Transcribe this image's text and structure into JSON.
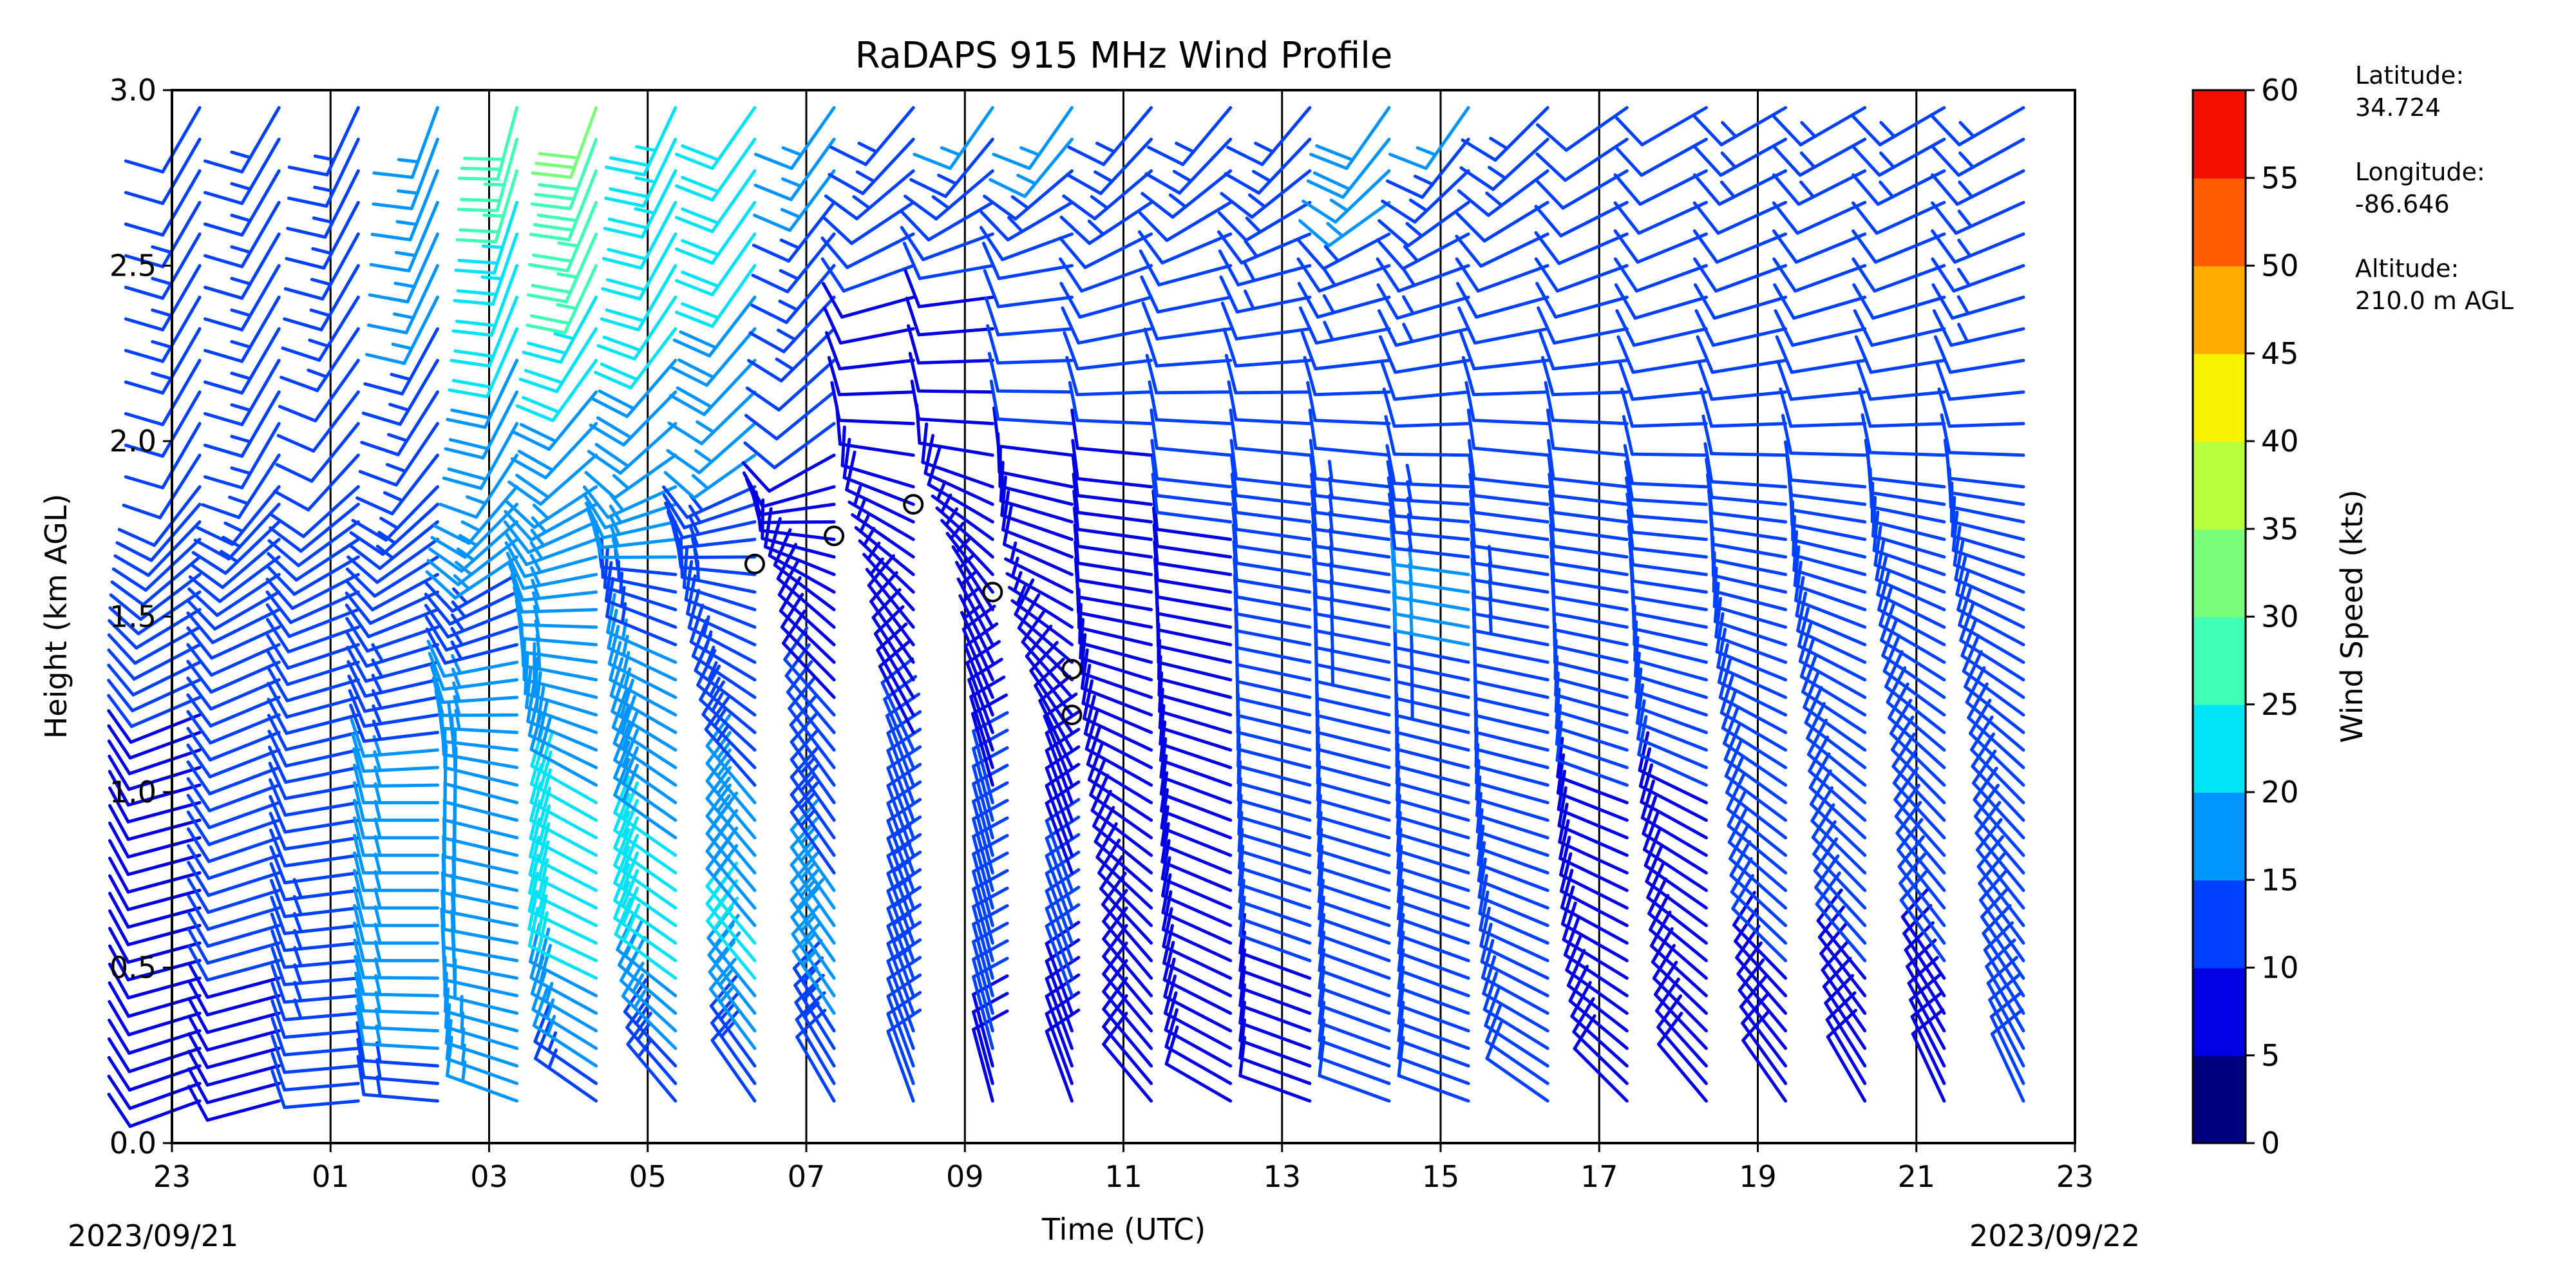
{
  "chart_data": {
    "type": "wind-barb",
    "title": "RaDAPS 915 MHz Wind Profile",
    "xlabel": "Time (UTC)",
    "ylabel": "Height (km AGL)",
    "x_ticks": [
      "23",
      "01",
      "03",
      "05",
      "07",
      "09",
      "11",
      "13",
      "15",
      "17",
      "19",
      "21",
      "23"
    ],
    "x_range_hours": [
      0,
      24
    ],
    "start_date": "2023/09/21",
    "end_date": "2023/09/22",
    "y_ticks": [
      "0.0",
      "0.5",
      "1.0",
      "1.5",
      "2.0",
      "2.5",
      "3.0"
    ],
    "ylim": [
      0,
      3.0
    ],
    "colorbar": {
      "label": "Wind Speed (kts)",
      "ticks": [
        "0",
        "5",
        "10",
        "15",
        "20",
        "25",
        "30",
        "35",
        "40",
        "45",
        "50",
        "55",
        "60"
      ],
      "range": [
        0,
        60
      ],
      "colors": [
        "#00007f",
        "#0000e3",
        "#0040ff",
        "#0094ff",
        "#00e3f7",
        "#3fffb6",
        "#7aff7a",
        "#b9ff3d",
        "#f7f400",
        "#ffab00",
        "#ff5c00",
        "#f20f00",
        "#7f0000"
      ]
    },
    "station": {
      "lat_label": "Latitude:",
      "lat": "34.724",
      "lon_label": "Longitude:",
      "lon": "-86.646",
      "alt_label": "Altitude:",
      "alt": "210.0 m AGL"
    },
    "profiles": [
      {
        "t": 0.0,
        "points": [
          [
            0.15,
            8,
            250
          ],
          [
            0.5,
            9,
            255
          ],
          [
            1.0,
            9,
            255
          ],
          [
            1.5,
            11,
            240
          ],
          [
            2.0,
            12,
            210
          ],
          [
            2.5,
            13,
            210
          ],
          [
            2.9,
            12,
            210
          ]
        ]
      },
      {
        "t": 1.0,
        "points": [
          [
            0.15,
            9,
            255
          ],
          [
            0.5,
            10,
            255
          ],
          [
            1.0,
            10,
            250
          ],
          [
            1.5,
            12,
            245
          ],
          [
            2.0,
            13,
            210
          ],
          [
            2.5,
            14,
            210
          ],
          [
            2.9,
            13,
            210
          ]
        ]
      },
      {
        "t": 2.0,
        "points": [
          [
            0.15,
            12,
            265
          ],
          [
            0.5,
            13,
            265
          ],
          [
            1.0,
            12,
            260
          ],
          [
            1.5,
            11,
            250
          ],
          [
            2.0,
            12,
            220
          ],
          [
            2.5,
            13,
            210
          ],
          [
            2.9,
            14,
            205
          ]
        ]
      },
      {
        "t": 3.0,
        "points": [
          [
            0.15,
            14,
            275
          ],
          [
            0.5,
            17,
            270
          ],
          [
            1.0,
            16,
            270
          ],
          [
            1.5,
            12,
            250
          ],
          [
            2.0,
            13,
            215
          ],
          [
            2.5,
            16,
            205
          ],
          [
            2.9,
            17,
            200
          ]
        ]
      },
      {
        "t": 4.0,
        "points": [
          [
            0.15,
            15,
            290
          ],
          [
            0.5,
            20,
            280
          ],
          [
            1.0,
            19,
            285
          ],
          [
            1.5,
            14,
            250
          ],
          [
            2.0,
            17,
            210
          ],
          [
            2.5,
            22,
            200
          ],
          [
            2.9,
            28,
            195
          ]
        ]
      },
      {
        "t": 5.0,
        "points": [
          [
            0.15,
            14,
            305
          ],
          [
            0.5,
            21,
            295
          ],
          [
            1.0,
            20,
            300
          ],
          [
            1.5,
            16,
            270
          ],
          [
            2.0,
            18,
            225
          ],
          [
            2.5,
            25,
            205
          ],
          [
            2.9,
            30,
            200
          ]
        ]
      },
      {
        "t": 6.0,
        "points": [
          [
            0.15,
            13,
            320
          ],
          [
            0.5,
            22,
            305
          ],
          [
            1.0,
            19,
            305
          ],
          [
            1.5,
            14,
            290
          ],
          [
            2.0,
            17,
            230
          ],
          [
            2.5,
            22,
            210
          ],
          [
            2.9,
            23,
            205
          ]
        ]
      },
      {
        "t": 7.0,
        "points": [
          [
            0.15,
            12,
            325
          ],
          [
            0.5,
            21,
            320
          ],
          [
            1.0,
            15,
            320
          ],
          [
            1.5,
            12,
            290
          ],
          [
            2.0,
            16,
            230
          ],
          [
            2.5,
            20,
            215
          ],
          [
            2.9,
            20,
            215
          ]
        ]
      },
      {
        "t": 8.0,
        "points": [
          [
            0.15,
            12,
            330
          ],
          [
            0.5,
            18,
            325
          ],
          [
            1.0,
            12,
            325
          ],
          [
            1.5,
            8,
            310
          ],
          [
            2.0,
            10,
            235
          ],
          [
            2.5,
            14,
            220
          ],
          [
            2.9,
            16,
            215
          ]
        ]
      },
      {
        "t": 9.0,
        "points": [
          [
            0.15,
            10,
            340
          ],
          [
            0.5,
            14,
            340
          ],
          [
            1.0,
            11,
            340
          ],
          [
            1.5,
            7,
            320
          ],
          [
            2.0,
            8,
            275
          ],
          [
            2.5,
            10,
            250
          ],
          [
            2.9,
            14,
            220
          ]
        ]
      },
      {
        "t": 10.0,
        "points": [
          [
            0.15,
            9,
            345
          ],
          [
            0.5,
            12,
            345
          ],
          [
            1.0,
            10,
            345
          ],
          [
            1.5,
            6,
            330
          ],
          [
            2.0,
            9,
            275
          ],
          [
            2.5,
            10,
            260
          ],
          [
            2.9,
            15,
            215
          ]
        ]
      },
      {
        "t": 11.0,
        "points": [
          [
            0.15,
            8,
            340
          ],
          [
            0.5,
            11,
            340
          ],
          [
            1.0,
            9,
            340
          ],
          [
            1.5,
            7,
            300
          ],
          [
            2.0,
            10,
            275
          ],
          [
            2.5,
            11,
            260
          ],
          [
            2.9,
            16,
            215
          ]
        ]
      },
      {
        "t": 12.0,
        "points": [
          [
            0.15,
            8,
            320
          ],
          [
            0.5,
            10,
            320
          ],
          [
            1.0,
            9,
            300
          ],
          [
            1.5,
            8,
            280
          ],
          [
            2.0,
            10,
            275
          ],
          [
            2.5,
            12,
            250
          ],
          [
            2.9,
            14,
            220
          ]
        ]
      },
      {
        "t": 13.0,
        "points": [
          [
            0.15,
            9,
            300
          ],
          [
            0.5,
            10,
            295
          ],
          [
            1.0,
            9,
            290
          ],
          [
            1.5,
            9,
            280
          ],
          [
            2.0,
            11,
            275
          ],
          [
            2.5,
            12,
            255
          ],
          [
            2.9,
            13,
            220
          ]
        ]
      },
      {
        "t": 14.0,
        "points": [
          [
            0.15,
            9,
            290
          ],
          [
            0.5,
            10,
            290
          ],
          [
            1.0,
            10,
            285
          ],
          [
            1.5,
            11,
            280
          ],
          [
            2.0,
            11,
            275
          ],
          [
            2.5,
            13,
            255
          ],
          [
            2.9,
            14,
            220
          ]
        ]
      },
      {
        "t": 15.0,
        "points": [
          [
            0.15,
            10,
            290
          ],
          [
            0.5,
            11,
            290
          ],
          [
            1.0,
            11,
            285
          ],
          [
            1.5,
            14,
            280
          ],
          [
            2.0,
            12,
            275
          ],
          [
            2.5,
            13,
            250
          ],
          [
            2.9,
            18,
            215
          ]
        ]
      },
      {
        "t": 16.0,
        "points": [
          [
            0.15,
            10,
            290
          ],
          [
            0.5,
            11,
            290
          ],
          [
            1.0,
            11,
            285
          ],
          [
            1.5,
            16,
            280
          ],
          [
            2.0,
            12,
            270
          ],
          [
            2.5,
            13,
            250
          ],
          [
            2.9,
            15,
            215
          ]
        ]
      },
      {
        "t": 17.0,
        "points": [
          [
            0.15,
            11,
            305
          ],
          [
            0.5,
            11,
            295
          ],
          [
            1.0,
            11,
            285
          ],
          [
            1.5,
            13,
            280
          ],
          [
            2.0,
            11,
            275
          ],
          [
            2.5,
            12,
            250
          ],
          [
            2.9,
            13,
            225
          ]
        ]
      },
      {
        "t": 18.0,
        "points": [
          [
            0.15,
            9,
            315
          ],
          [
            0.5,
            9,
            300
          ],
          [
            1.0,
            10,
            290
          ],
          [
            1.5,
            12,
            280
          ],
          [
            2.0,
            11,
            275
          ],
          [
            2.5,
            11,
            250
          ],
          [
            2.9,
            12,
            235
          ]
        ]
      },
      {
        "t": 19.0,
        "points": [
          [
            0.15,
            8,
            320
          ],
          [
            0.5,
            9,
            310
          ],
          [
            1.0,
            10,
            295
          ],
          [
            1.5,
            12,
            280
          ],
          [
            2.0,
            11,
            270
          ],
          [
            2.5,
            11,
            250
          ],
          [
            2.9,
            12,
            240
          ]
        ]
      },
      {
        "t": 20.0,
        "points": [
          [
            0.15,
            9,
            325
          ],
          [
            0.5,
            10,
            315
          ],
          [
            1.0,
            11,
            305
          ],
          [
            1.5,
            12,
            285
          ],
          [
            2.0,
            11,
            270
          ],
          [
            2.5,
            12,
            250
          ],
          [
            2.9,
            13,
            240
          ]
        ]
      },
      {
        "t": 21.0,
        "points": [
          [
            0.15,
            9,
            330
          ],
          [
            0.5,
            10,
            320
          ],
          [
            1.0,
            11,
            310
          ],
          [
            1.5,
            12,
            290
          ],
          [
            2.0,
            11,
            270
          ],
          [
            2.5,
            12,
            250
          ],
          [
            2.9,
            13,
            240
          ]
        ]
      },
      {
        "t": 22.0,
        "points": [
          [
            0.15,
            9,
            335
          ],
          [
            0.5,
            10,
            325
          ],
          [
            1.0,
            11,
            315
          ],
          [
            1.5,
            12,
            295
          ],
          [
            2.0,
            12,
            270
          ],
          [
            2.5,
            12,
            250
          ],
          [
            2.9,
            13,
            240
          ]
        ]
      },
      {
        "t": 23.0,
        "points": [
          [
            0.15,
            10,
            335
          ],
          [
            0.5,
            11,
            325
          ],
          [
            1.0,
            11,
            315
          ],
          [
            1.5,
            12,
            295
          ],
          [
            2.0,
            12,
            270
          ],
          [
            2.5,
            13,
            250
          ],
          [
            2.9,
            13,
            240
          ]
        ]
      }
    ],
    "calm_points": [
      [
        7.35,
        1.65
      ],
      [
        8.35,
        1.73
      ],
      [
        9.35,
        1.82
      ],
      [
        10.35,
        1.57
      ],
      [
        11.35,
        1.35
      ],
      [
        11.35,
        1.22
      ]
    ]
  }
}
